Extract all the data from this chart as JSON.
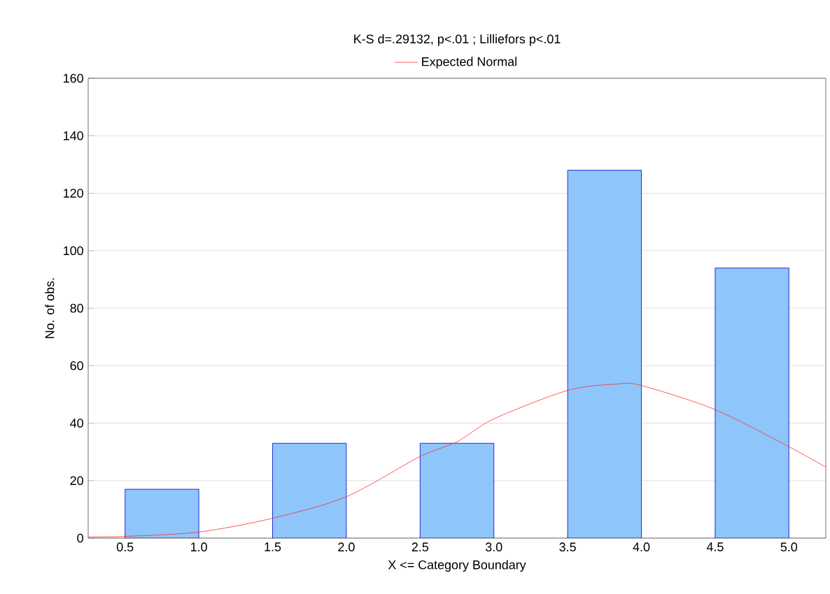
{
  "chart_data": {
    "type": "histogram",
    "title": "K-S d=.29132, p<.01 ; Lilliefors p<.01",
    "xlabel": "X <= Category Boundary",
    "ylabel": "No. of obs.",
    "bins": [
      0.5,
      1.0,
      1.5,
      2.0,
      2.5,
      3.0,
      3.5,
      4.0,
      4.5,
      5.0
    ],
    "values": [
      17,
      null,
      33,
      null,
      33,
      null,
      128,
      null,
      94
    ],
    "color": "#8ec5fb",
    "series": [
      {
        "type": "line",
        "name": "Expected Normal",
        "color": "#ff3030",
        "x": [
          0.25,
          0.5,
          1.0,
          1.5,
          2.0,
          2.5,
          2.75,
          3.0,
          3.5,
          3.83,
          4.0,
          4.5,
          5.0,
          5.25
        ],
        "values": [
          0.4,
          0.6,
          2.1,
          6.9,
          14.4,
          28.4,
          33.5,
          41.5,
          51.4,
          53.6,
          53.1,
          44.7,
          31.8,
          24.7
        ]
      }
    ],
    "xlim": [
      0.25,
      5.25
    ],
    "ylim": [
      0,
      160
    ],
    "xticks": [
      {
        "value": 0.5,
        "label": "0.5"
      },
      {
        "value": 1.0,
        "label": "1.0"
      },
      {
        "value": 1.5,
        "label": "1.5"
      },
      {
        "value": 2.0,
        "label": "2.0"
      },
      {
        "value": 2.5,
        "label": "2.5"
      },
      {
        "value": 3.0,
        "label": "3.0"
      },
      {
        "value": 3.5,
        "label": "3.5"
      },
      {
        "value": 4.0,
        "label": "4.0"
      },
      {
        "value": 4.5,
        "label": "4.5"
      },
      {
        "value": 5.0,
        "label": "5.0"
      }
    ],
    "yticks": [
      0,
      20,
      40,
      60,
      80,
      100,
      120,
      140,
      160
    ],
    "grid": "y",
    "legend": "top"
  }
}
